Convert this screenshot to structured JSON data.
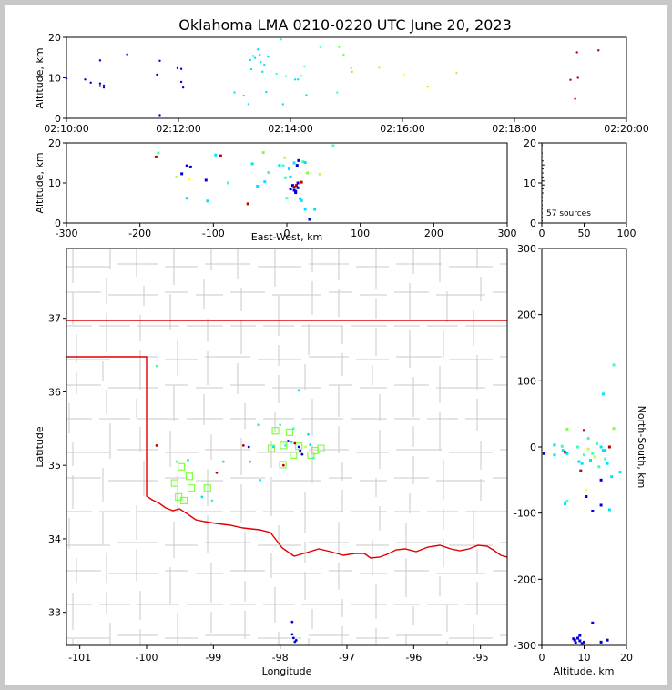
{
  "title": "Oklahoma LMA 0210-0220 UTC June 20, 2023",
  "source_count": "57 sources",
  "colors": {
    "state_border": "#e00000",
    "county": "#c8c8c8",
    "station": "#80ff40",
    "frame": "#000000"
  },
  "chart_data": [
    {
      "id": "time_altitude",
      "type": "scatter",
      "xlabel": "",
      "ylabel": "Altitude, km",
      "xticks": [
        "02:10:00",
        "02:12:00",
        "02:14:00",
        "02:16:00",
        "02:18:00",
        "02:20:00"
      ],
      "xlim": [
        0,
        600
      ],
      "ylim": [
        0,
        20
      ],
      "yticks": [
        0,
        10,
        20
      ],
      "points": [
        [
          0,
          9.8
        ],
        [
          20,
          9.6
        ],
        [
          26,
          8.8
        ],
        [
          36,
          14.3
        ],
        [
          36,
          8
        ],
        [
          36,
          8.6
        ],
        [
          40,
          7.6
        ],
        [
          40,
          8.1
        ],
        [
          65,
          15.8
        ],
        [
          97,
          10.8
        ],
        [
          100,
          14.2
        ],
        [
          100,
          0.8
        ],
        [
          119,
          12.4
        ],
        [
          123,
          12.2
        ],
        [
          123,
          9
        ],
        [
          125,
          7.6
        ],
        [
          180,
          6.4
        ],
        [
          190,
          5.6
        ],
        [
          195,
          3.5
        ],
        [
          197,
          14.4
        ],
        [
          198,
          12.1
        ],
        [
          200,
          15.4
        ],
        [
          202,
          14.9
        ],
        [
          205,
          17
        ],
        [
          207,
          15.7
        ],
        [
          208,
          13.9
        ],
        [
          210,
          11.5
        ],
        [
          212,
          13.2
        ],
        [
          214,
          6.5
        ],
        [
          216,
          15.2
        ],
        [
          225,
          11
        ],
        [
          230,
          19.5
        ],
        [
          232,
          3.5
        ],
        [
          235,
          10.4
        ],
        [
          245,
          9.6
        ],
        [
          248,
          9.6
        ],
        [
          252,
          10.5
        ],
        [
          255,
          12.8
        ],
        [
          257,
          5.7
        ],
        [
          272,
          17.6
        ],
        [
          290,
          6.4
        ],
        [
          292,
          17.6
        ],
        [
          297,
          15.7
        ],
        [
          305,
          12.4
        ],
        [
          306,
          11.5
        ],
        [
          335,
          12.5
        ],
        [
          362,
          10.8
        ],
        [
          387,
          7.8
        ],
        [
          418,
          11.2
        ],
        [
          540,
          9.5
        ],
        [
          545,
          4.8
        ],
        [
          547,
          16.3
        ],
        [
          548,
          10
        ],
        [
          570,
          16.8
        ]
      ],
      "point_colors": [
        "#0000d8",
        "#0000d8",
        "#0000d8",
        "#0000d8",
        "#0000d8",
        "#0000d8",
        "#0000d8",
        "#0000d8",
        "#0000d8",
        "#0000d8",
        "#0000d8",
        "#0000d8",
        "#0000d8",
        "#0000d8",
        "#0000d8",
        "#0000d8",
        "#00e0ff",
        "#00e0ff",
        "#00e0ff",
        "#00e0ff",
        "#00e0ff",
        "#00e0ff",
        "#00e0ff",
        "#00e0ff",
        "#00e0ff",
        "#00e0ff",
        "#00e0ff",
        "#00e0ff",
        "#00e0ff",
        "#00e0ff",
        "#40ffb0",
        "#40ffb0",
        "#00e0ff",
        "#40ffb0",
        "#00e0ff",
        "#00e0ff",
        "#40ffb0",
        "#40ffb0",
        "#00e0ff",
        "#40ffb0",
        "#40ffb0",
        "#80ff40",
        "#80ff40",
        "#80ff40",
        "#80ff40",
        "#c0ff40",
        "#ffff40",
        "#e8e800",
        "#ffd040",
        "#c00000",
        "#c00000",
        "#c00000",
        "#c00000",
        "#c00000"
      ]
    },
    {
      "id": "ew_altitude",
      "type": "scatter",
      "xlabel": "East-West, km",
      "ylabel": "Altitude, km",
      "xlim": [
        -300,
        300
      ],
      "xticks": [
        -300,
        -200,
        -100,
        0,
        100,
        200,
        300
      ],
      "ylim": [
        0,
        20
      ],
      "yticks": [
        0,
        10,
        20
      ],
      "points": [
        [
          -178,
          16.5
        ],
        [
          -175,
          17.5
        ],
        [
          -150,
          11.5
        ],
        [
          -143,
          12.3
        ],
        [
          -136,
          14.3
        ],
        [
          -133,
          10.9
        ],
        [
          -131,
          14
        ],
        [
          -136,
          6.2
        ],
        [
          -110,
          10.7
        ],
        [
          -108,
          5.5
        ],
        [
          -97,
          17
        ],
        [
          -90,
          16.8
        ],
        [
          -80,
          10
        ],
        [
          -53,
          4.8
        ],
        [
          -47,
          14.8
        ],
        [
          -40,
          9.2
        ],
        [
          -32,
          17.6
        ],
        [
          -30,
          10.3
        ],
        [
          -25,
          12.6
        ],
        [
          -10,
          14.4
        ],
        [
          -5,
          14.3
        ],
        [
          -3,
          16.3
        ],
        [
          -2,
          11.3
        ],
        [
          0,
          6.2
        ],
        [
          3,
          13.5
        ],
        [
          5,
          11.5
        ],
        [
          5,
          8.5
        ],
        [
          8,
          9.4
        ],
        [
          10,
          9
        ],
        [
          10,
          8.2
        ],
        [
          10,
          15
        ],
        [
          12,
          7.9
        ],
        [
          12,
          7.6
        ],
        [
          13,
          9.4
        ],
        [
          14,
          14.4
        ],
        [
          15,
          10
        ],
        [
          15,
          8.8
        ],
        [
          16,
          15.6
        ],
        [
          18,
          6.1
        ],
        [
          20,
          10.2
        ],
        [
          20,
          5.6
        ],
        [
          22,
          15.3
        ],
        [
          25,
          3.4
        ],
        [
          25,
          15.1
        ],
        [
          28,
          12.5
        ],
        [
          31,
          0.9
        ],
        [
          38,
          3.4
        ],
        [
          45,
          12.2
        ],
        [
          63,
          19.3
        ]
      ],
      "point_colors": [
        "#c00000",
        "#40ffb0",
        "#c0ff40",
        "#0000d8",
        "#0000d8",
        "#ffff40",
        "#0000d8",
        "#00e0ff",
        "#0000d8",
        "#00e0ff",
        "#00e0ff",
        "#c00000",
        "#40ffb0",
        "#c00000",
        "#00e0ff",
        "#00e0ff",
        "#80ff40",
        "#00e0ff",
        "#40ffb0",
        "#00e0ff",
        "#40ffb0",
        "#c0ff40",
        "#40ffb0",
        "#40ffb0",
        "#00e0ff",
        "#00e0ff",
        "#0000d8",
        "#0000d8",
        "#c00000",
        "#0000d8",
        "#00e0ff",
        "#0000d8",
        "#0000d8",
        "#c00000",
        "#0000d8",
        "#0000d8",
        "#0000d8",
        "#0000d8",
        "#00e0ff",
        "#c00000",
        "#00e0ff",
        "#40ffb0",
        "#00e0ff",
        "#00e0ff",
        "#80ff40",
        "#0000d8",
        "#00e0ff",
        "#c0ff40",
        "#40ffb0"
      ]
    },
    {
      "id": "histogram",
      "type": "bar",
      "xlim": [
        0,
        100
      ],
      "xticks": [
        0,
        50,
        100
      ],
      "ylim": [
        0,
        20
      ],
      "yticks": [
        0,
        10,
        20
      ],
      "bins": [
        [
          0.5,
          1
        ],
        [
          1.5,
          1
        ],
        [
          2.5,
          1
        ],
        [
          3.5,
          1
        ],
        [
          4.5,
          1
        ],
        [
          5.5,
          1
        ],
        [
          6.5,
          1
        ],
        [
          7.5,
          2
        ],
        [
          8.5,
          2
        ],
        [
          9.5,
          3
        ],
        [
          10.5,
          3
        ],
        [
          11.5,
          2
        ],
        [
          12.5,
          2
        ],
        [
          13.5,
          2
        ],
        [
          14.5,
          3
        ],
        [
          15.5,
          2
        ],
        [
          16.5,
          2
        ],
        [
          17.5,
          1
        ],
        [
          19.5,
          1
        ]
      ]
    },
    {
      "id": "plan_view",
      "type": "scatter",
      "xlabel": "Longitude",
      "ylabel": "Latitude",
      "xlim": [
        -101.2,
        -94.6
      ],
      "xticks": [
        -101,
        -100,
        -99,
        -98,
        -97,
        -96,
        -95
      ],
      "ylim": [
        32.55,
        37.95
      ],
      "yticks": [
        33,
        34,
        35,
        36,
        37
      ],
      "stations": [
        [
          -99.48,
          34.98
        ],
        [
          -99.36,
          34.85
        ],
        [
          -99.58,
          34.76
        ],
        [
          -99.52,
          34.57
        ],
        [
          -99.44,
          34.52
        ],
        [
          -99.33,
          34.69
        ],
        [
          -99.09,
          34.69
        ],
        [
          -98.13,
          35.23
        ],
        [
          -98.07,
          35.47
        ],
        [
          -97.95,
          35.27
        ],
        [
          -97.86,
          35.45
        ],
        [
          -97.8,
          35.14
        ],
        [
          -97.72,
          35.26
        ],
        [
          -97.54,
          35.14
        ],
        [
          -97.48,
          35.2
        ],
        [
          -97.39,
          35.23
        ],
        [
          -97.96,
          35.01
        ]
      ],
      "points": [
        [
          -99.85,
          35.27
        ],
        [
          -99.85,
          36.35
        ],
        [
          -99.55,
          35.05
        ],
        [
          -99.38,
          35.07
        ],
        [
          -99.17,
          34.57
        ],
        [
          -99.02,
          34.52
        ],
        [
          -98.95,
          34.9
        ],
        [
          -98.85,
          35.05
        ],
        [
          -98.55,
          35.27
        ],
        [
          -98.47,
          35.25
        ],
        [
          -98.45,
          35.05
        ],
        [
          -98.33,
          35.55
        ],
        [
          -98.3,
          34.8
        ],
        [
          -98.1,
          35.25
        ],
        [
          -98.0,
          35.55
        ],
        [
          -97.95,
          35.0
        ],
        [
          -97.92,
          35.27
        ],
        [
          -97.88,
          35.33
        ],
        [
          -97.83,
          35.32
        ],
        [
          -97.8,
          35.5
        ],
        [
          -97.78,
          35.3
        ],
        [
          -97.72,
          35.25
        ],
        [
          -97.7,
          35.2
        ],
        [
          -97.67,
          35.15
        ],
        [
          -97.62,
          35.25
        ],
        [
          -97.58,
          35.42
        ],
        [
          -97.55,
          35.28
        ],
        [
          -97.82,
          32.87
        ],
        [
          -97.82,
          32.7
        ],
        [
          -97.8,
          32.65
        ],
        [
          -97.78,
          32.6
        ],
        [
          -97.76,
          32.62
        ],
        [
          -97.72,
          36.02
        ],
        [
          -97.5,
          35.1
        ],
        [
          -97.42,
          35.18
        ]
      ],
      "point_colors": [
        "#c00000",
        "#40ffb0",
        "#40ffb0",
        "#00e0ff",
        "#00e0ff",
        "#40ffb0",
        "#c00000",
        "#00e0ff",
        "#c00000",
        "#0000d8",
        "#00e0ff",
        "#40ffb0",
        "#00e0ff",
        "#00e0ff",
        "#40ffb0",
        "#c00000",
        "#40ffb0",
        "#0000d8",
        "#00e0ff",
        "#40ffb0",
        "#c00000",
        "#0000d8",
        "#0000d8",
        "#0000d8",
        "#c0ff40",
        "#00e0ff",
        "#00e0ff",
        "#0000d8",
        "#0000d8",
        "#0000d8",
        "#0000d8",
        "#0000d8",
        "#00e0ff",
        "#40ffb0",
        "#80ff40"
      ]
    },
    {
      "id": "ns_altitude",
      "type": "scatter",
      "xlabel": "Altitude, km",
      "ylabel": "North-South, km",
      "xlim": [
        0,
        20
      ],
      "xticks": [
        0,
        10,
        20
      ],
      "ylim": [
        -300,
        300
      ],
      "yticks": [
        -300,
        -200,
        -100,
        0,
        100,
        200,
        300
      ],
      "points": [
        [
          0.5,
          -10
        ],
        [
          3,
          3
        ],
        [
          3,
          -12
        ],
        [
          4.8,
          1
        ],
        [
          5,
          -5
        ],
        [
          5.5,
          -8
        ],
        [
          5.5,
          -86
        ],
        [
          6,
          27
        ],
        [
          6,
          -10
        ],
        [
          6,
          -82
        ],
        [
          8.5,
          0
        ],
        [
          8.8,
          -22
        ],
        [
          9.2,
          -36
        ],
        [
          9.5,
          -25
        ],
        [
          10,
          -12
        ],
        [
          10,
          25
        ],
        [
          10.5,
          -75
        ],
        [
          10.5,
          -65
        ],
        [
          11,
          -3
        ],
        [
          11,
          13
        ],
        [
          11.5,
          -20
        ],
        [
          12,
          -10
        ],
        [
          12,
          -97
        ],
        [
          12,
          -266
        ],
        [
          12.5,
          -15
        ],
        [
          13,
          5
        ],
        [
          13.5,
          -30
        ],
        [
          14,
          0
        ],
        [
          14,
          -50
        ],
        [
          14,
          -88
        ],
        [
          14.5,
          -5
        ],
        [
          14.5,
          80
        ],
        [
          15,
          -18
        ],
        [
          15,
          -5
        ],
        [
          15.5,
          -25
        ],
        [
          16,
          -95
        ],
        [
          16,
          0
        ],
        [
          16.5,
          -45
        ],
        [
          17,
          28
        ],
        [
          17,
          124
        ],
        [
          18.5,
          -38
        ],
        [
          7.5,
          -290
        ],
        [
          7.8,
          -292
        ],
        [
          8,
          -296
        ],
        [
          8.5,
          -289
        ],
        [
          9,
          -293
        ],
        [
          9,
          -285
        ],
        [
          9.5,
          -297
        ],
        [
          10,
          -295
        ],
        [
          14,
          -295
        ],
        [
          15.5,
          -292
        ]
      ],
      "point_colors": [
        "#0000d8",
        "#00e0ff",
        "#00e0ff",
        "#40ffb0",
        "#00e0ff",
        "#c00000",
        "#00e0ff",
        "#80ff40",
        "#00e0ff",
        "#40ffb0",
        "#40ffb0",
        "#00e0ff",
        "#c00000",
        "#00e0ff",
        "#40ffb0",
        "#c00000",
        "#0000d8",
        "#ffff40",
        "#c0ff40",
        "#40ffb0",
        "#00e0ff",
        "#40ffb0",
        "#0000d8",
        "#0000d8",
        "#c0ff40",
        "#40ffb0",
        "#40ffb0",
        "#00e0ff",
        "#0000d8",
        "#0000d8",
        "#00e0ff",
        "#00e0ff",
        "#40ffb0",
        "#00e0ff",
        "#00e0ff",
        "#00e0ff",
        "#c00000",
        "#00e0ff",
        "#80ff40",
        "#40ffb0",
        "#00e0ff",
        "#0000d8",
        "#0000d8",
        "#0000d8",
        "#0000d8",
        "#0000d8",
        "#0000d8",
        "#0000d8",
        "#0000d8",
        "#0000d8",
        "#0000d8"
      ]
    }
  ]
}
